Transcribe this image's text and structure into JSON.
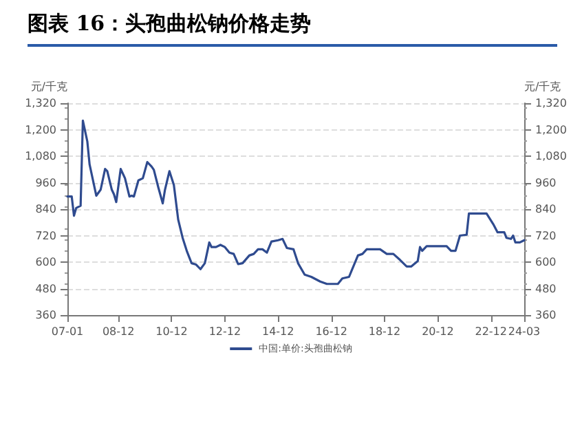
{
  "chart_data": {
    "type": "line",
    "title": "图表 16：头孢曲松钠价格走势",
    "ylabel": "元/千克",
    "y2label": "元/千克",
    "x": [
      "2007-01",
      "2007-03",
      "2007-04",
      "2007-05",
      "2007-07",
      "2007-08",
      "2007-10",
      "2007-11",
      "2008-02",
      "2008-04",
      "2008-06",
      "2008-07",
      "2008-09",
      "2008-10",
      "2008-11",
      "2009-01",
      "2009-03",
      "2009-05",
      "2009-06",
      "2009-07",
      "2009-09",
      "2009-11",
      "2010-01",
      "2010-03",
      "2010-04",
      "2010-06",
      "2010-08",
      "2010-09",
      "2010-11",
      "2011-01",
      "2011-03",
      "2011-05",
      "2011-07",
      "2011-09",
      "2011-11",
      "2012-01",
      "2012-03",
      "2012-05",
      "2012-06",
      "2012-08",
      "2012-10",
      "2012-12",
      "2013-02",
      "2013-04",
      "2013-06",
      "2013-08",
      "2013-11",
      "2014-01",
      "2014-03",
      "2014-05",
      "2014-07",
      "2014-09",
      "2014-12",
      "2015-02",
      "2015-04",
      "2015-07",
      "2015-09",
      "2015-12",
      "2016-03",
      "2016-07",
      "2016-10",
      "2017-03",
      "2017-05",
      "2017-08",
      "2017-12",
      "2018-02",
      "2018-04",
      "2018-10",
      "2019-01",
      "2019-04",
      "2019-07",
      "2019-10",
      "2019-12",
      "2020-03",
      "2020-04",
      "2020-05",
      "2020-07",
      "2021-04",
      "2021-06",
      "2021-08",
      "2021-10",
      "2022-01",
      "2022-02",
      "2022-10",
      "2023-01",
      "2023-03",
      "2023-06",
      "2023-07",
      "2023-09",
      "2023-10",
      "2023-11",
      "2024-01",
      "2024-03"
    ],
    "series": [
      {
        "name": "中国:单价:头孢曲松钠",
        "color": "#2f4b8f",
        "values": [
          897,
          897,
          810,
          845,
          855,
          1241,
          1147,
          1043,
          901,
          928,
          1022,
          1012,
          928,
          907,
          872,
          1022,
          980,
          897,
          901,
          897,
          970,
          980,
          1053,
          1033,
          1018,
          939,
          866,
          928,
          1012,
          949,
          793,
          710,
          647,
          595,
          589,
          568,
          595,
          689,
          668,
          668,
          678,
          668,
          643,
          637,
          591,
          595,
          630,
          637,
          658,
          658,
          643,
          693,
          699,
          705,
          664,
          658,
          595,
          543,
          533,
          512,
          501,
          501,
          526,
          533,
          630,
          637,
          658,
          658,
          637,
          637,
          610,
          580,
          580,
          605,
          668,
          651,
          672,
          672,
          651,
          651,
          720,
          724,
          820,
          820,
          772,
          735,
          735,
          710,
          705,
          720,
          689,
          689,
          699
        ]
      }
    ],
    "xlim": [
      "2007-01",
      "2024-03"
    ],
    "xticks": [
      {
        "value": "2007-01",
        "label": "07-01"
      },
      {
        "value": "2008-12",
        "label": "08-12"
      },
      {
        "value": "2010-12",
        "label": "10-12"
      },
      {
        "value": "2012-12",
        "label": "12-12"
      },
      {
        "value": "2014-12",
        "label": "14-12"
      },
      {
        "value": "2016-12",
        "label": "16-12"
      },
      {
        "value": "2018-12",
        "label": "18-12"
      },
      {
        "value": "2020-12",
        "label": "20-12"
      },
      {
        "value": "2022-12",
        "label": "22-12"
      },
      {
        "value": "2024-03",
        "label": "24-03"
      }
    ],
    "ylim": [
      360,
      1320
    ],
    "yticks": [
      360,
      480,
      600,
      720,
      840,
      960,
      {
        "value": 1080,
        "label": "1,080"
      },
      {
        "value": 1200,
        "label": "1,200"
      },
      {
        "value": 1320,
        "label": "1,320"
      }
    ],
    "y2lim": [
      360,
      1320
    ],
    "y2ticks": [
      360,
      480,
      600,
      720,
      840,
      960,
      {
        "value": 1080,
        "label": "1,080"
      },
      {
        "value": 1200,
        "label": "1,200"
      },
      {
        "value": 1320,
        "label": "1,320"
      }
    ],
    "grid": "y",
    "legend": "bottom",
    "marker": "none",
    "line_style": "solid"
  }
}
